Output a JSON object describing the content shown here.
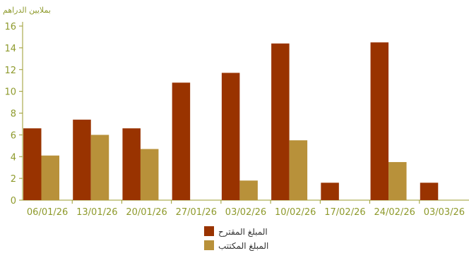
{
  "chart_data": {
    "type": "bar",
    "ylabel": "بملايين الدراهم",
    "ylim": [
      0,
      16
    ],
    "yticks": [
      0,
      2,
      4,
      6,
      8,
      10,
      12,
      14,
      16
    ],
    "categories": [
      "06/01/26",
      "13/01/26",
      "20/01/26",
      "27/01/26",
      "03/02/26",
      "10/02/26",
      "17/02/26",
      "24/02/26",
      "03/03/26"
    ],
    "series": [
      {
        "name": "المبلغ المقترح",
        "color": "#993300",
        "values": [
          6.6,
          7.4,
          6.6,
          10.8,
          11.7,
          14.4,
          1.6,
          14.5,
          1.6
        ]
      },
      {
        "name": "المبلغ المكتتب",
        "color": "#B8913A",
        "values": [
          4.1,
          6.0,
          4.7,
          0,
          1.8,
          5.5,
          0,
          3.5,
          0
        ]
      }
    ],
    "axis_color": "#9B9B2E",
    "label_color": "#8E9A2C",
    "grid": false,
    "legend_position": "bottom-center"
  }
}
